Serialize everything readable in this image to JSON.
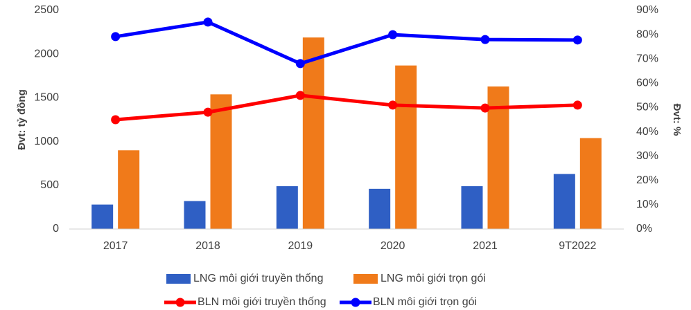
{
  "chart_data": {
    "type": "combo",
    "ylabel": "Đvt: tỷ đồng",
    "y2label": "Đvt: %",
    "categories": [
      "2017",
      "2018",
      "2019",
      "2020",
      "2021",
      "9T2022"
    ],
    "series": [
      {
        "name": "LNG môi giới truyền thống",
        "type": "bar",
        "color": "#2f5fc4",
        "values": [
          280,
          320,
          490,
          460,
          490,
          630
        ]
      },
      {
        "name": "LNG môi giới trọn gói",
        "type": "bar",
        "color": "#f07a1a",
        "values": [
          900,
          1540,
          2190,
          1870,
          1630,
          1040
        ]
      },
      {
        "name": "BLN môi giới truyền thống",
        "type": "line",
        "axis": "y2",
        "color": "#ff0000",
        "values": [
          45.0,
          48.1,
          55.0,
          51.0,
          49.8,
          51.0
        ]
      },
      {
        "name": "BLN môi giới trọn gói",
        "type": "line",
        "axis": "y2",
        "color": "#0000ff",
        "values": [
          79.2,
          85.2,
          68.1,
          80.0,
          78.0,
          77.8
        ]
      }
    ],
    "ylim": [
      0,
      2500
    ],
    "yticks": [
      0,
      500,
      1000,
      1500,
      2000,
      2500
    ],
    "y2lim": [
      0,
      90
    ],
    "y2ticks": [
      {
        "value": 0,
        "label": "0%"
      },
      {
        "value": 10,
        "label": "10%"
      },
      {
        "value": 20,
        "label": "20%"
      },
      {
        "value": 30,
        "label": "30%"
      },
      {
        "value": 40,
        "label": "40%"
      },
      {
        "value": 50,
        "label": "50%"
      },
      {
        "value": 60,
        "label": "60%"
      },
      {
        "value": 70,
        "label": "70%"
      },
      {
        "value": 80,
        "label": "80%"
      },
      {
        "value": 90,
        "label": "90%"
      }
    ],
    "grid": false,
    "legend": "bottom"
  }
}
